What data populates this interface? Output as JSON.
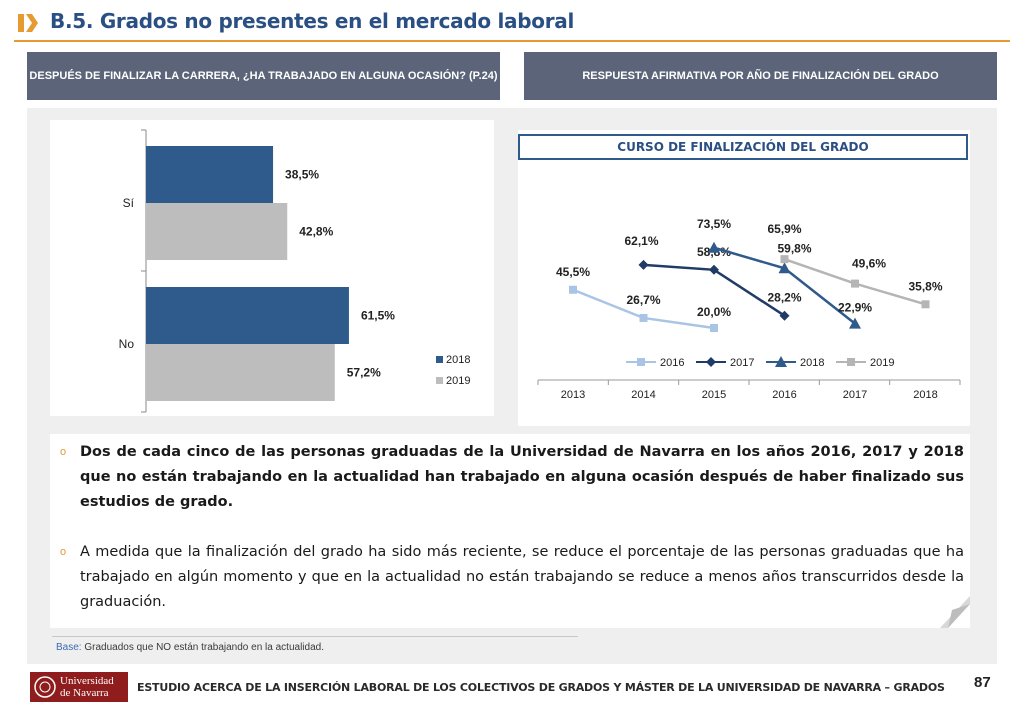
{
  "header": {
    "title": "B.5. Grados no presentes en el mercado laboral",
    "accent_color": "#e59a32",
    "title_color": "#2a4f82"
  },
  "left_panel": {
    "header": "DESPUÉS DE FINALIZAR LA CARRERA, ¿HA TRABAJADO EN ALGUNA OCASIÓN? (P.24)"
  },
  "right_panel": {
    "header": "RESPUESTA AFIRMATIVA POR AÑO DE FINALIZACIÓN DEL GRADO",
    "subtitle": "CURSO DE FINALIZACIÓN DEL GRADO"
  },
  "chart_data": [
    {
      "type": "bar",
      "orientation": "horizontal",
      "categories": [
        "Sí",
        "No"
      ],
      "series": [
        {
          "name": "2018",
          "values": [
            38.5,
            61.5
          ],
          "labels": [
            "38,5%",
            "61,5%"
          ],
          "color": "#2e5a8c"
        },
        {
          "name": "2019",
          "values": [
            42.8,
            57.2
          ],
          "labels": [
            "42,8%",
            "57,2%"
          ],
          "color": "#bdbdbd"
        }
      ],
      "legend": "right",
      "grid": false
    },
    {
      "type": "line",
      "x": [
        "2013",
        "2014",
        "2015",
        "2016",
        "2017",
        "2018"
      ],
      "series": [
        {
          "name": "2016",
          "color": "#a9c4e4",
          "marker": "square",
          "values": [
            45.5,
            26.7,
            20.0,
            null,
            null,
            null
          ],
          "labels": [
            "45,5%",
            "26,7%",
            "20,0%",
            "",
            "",
            ""
          ]
        },
        {
          "name": "2017",
          "color": "#1f3b66",
          "marker": "diamond",
          "values": [
            null,
            62.1,
            58.8,
            28.2,
            null,
            null
          ],
          "labels": [
            "",
            "62,1%",
            "58,8%",
            "28,2%",
            "",
            ""
          ]
        },
        {
          "name": "2018",
          "color": "#2e5a8c",
          "marker": "triangle",
          "values": [
            null,
            null,
            73.5,
            59.8,
            22.9,
            null
          ],
          "labels": [
            "",
            "",
            "73,5%",
            "59,8%",
            "22,9%",
            ""
          ]
        },
        {
          "name": "2019",
          "color": "#b5b5b5",
          "marker": "square",
          "values": [
            null,
            null,
            null,
            65.9,
            49.6,
            35.8
          ],
          "labels": [
            "",
            "",
            "",
            "65,9%",
            "49,6%",
            "35,8%"
          ]
        }
      ],
      "legend": "top",
      "grid": false
    }
  ],
  "text": {
    "paragraph_1": "Dos de cada cinco de las personas graduadas de la Universidad de Navarra en los años 2016, 2017 y 2018 que no están trabajando en la actualidad han trabajado en alguna ocasión después de haber finalizado sus estudios de grado.",
    "paragraph_2": "A medida que la finalización del grado ha sido más reciente, se reduce el porcentaje de las personas graduadas que ha trabajado en algún momento y que en la actualidad no están trabajando se reduce a menos años transcurridos desde la graduación.",
    "bullet": "o"
  },
  "base_note": {
    "label": "Base:",
    "text": "Graduados que NO están trabajando en la actualidad."
  },
  "footer": {
    "logo_line1": "Universidad",
    "logo_line2": "de Navarra",
    "text": "ESTUDIO ACERCA DE LA INSERCIÓN LABORAL DE LOS COLECTIVOS DE GRADOS Y MÁSTER DE LA UNIVERSIDAD DE NAVARRA – GRADOS",
    "page_number": "87"
  }
}
